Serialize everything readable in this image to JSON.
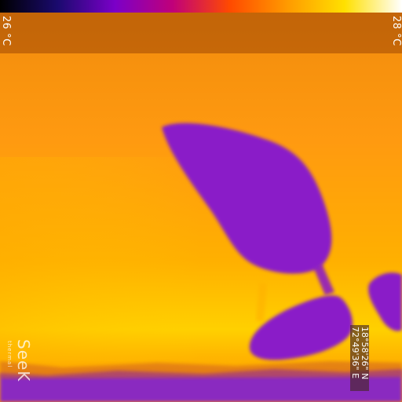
{
  "thermal": {
    "temp_min": "26 °C",
    "temp_max": "28 °C",
    "palette_colors": [
      "#000000",
      "#1a0a6e",
      "#7b00c8",
      "#c0007a",
      "#ff4a00",
      "#ff9a00",
      "#ffe000",
      "#ffffff"
    ],
    "latitude": "18°58'26\" N",
    "longitude": "72°49'36\" E"
  },
  "brand": {
    "name": "SeeK",
    "sub": "thermal"
  },
  "colors": {
    "background_orange": "#ff9a10",
    "background_yellow": "#ffd000",
    "leaf_purple": "#8a1cc8",
    "ground_purple": "#7a20c0"
  }
}
